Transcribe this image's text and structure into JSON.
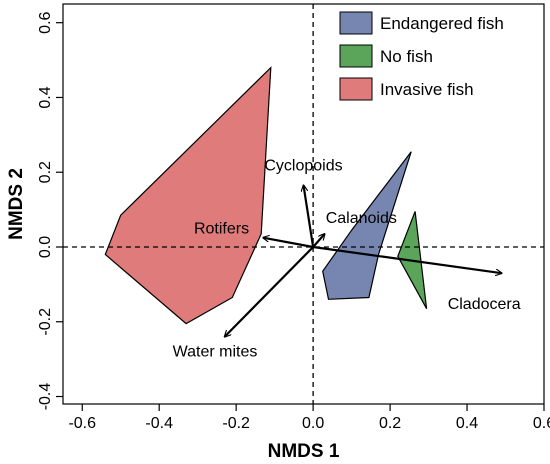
{
  "chart_data": {
    "type": "scatter",
    "xlabel": "NMDS 1",
    "ylabel": "NMDS 2",
    "xlim": [
      -0.65,
      0.6
    ],
    "ylim": [
      -0.42,
      0.65
    ],
    "x_ticks": [
      -0.6,
      -0.4,
      -0.2,
      0.0,
      0.2,
      0.4,
      0.6
    ],
    "x_tick_labels": [
      "-0.6",
      "-0.4",
      "-0.2",
      "0.0",
      "0.2",
      "0.4",
      "0.6"
    ],
    "y_ticks": [
      -0.4,
      -0.2,
      0.0,
      0.2,
      0.4,
      0.6
    ],
    "y_tick_labels": [
      "-0.4",
      "-0.2",
      "0.0",
      "0.2",
      "0.4",
      "0.6"
    ],
    "reference_lines": {
      "x": 0,
      "y": 0,
      "style": "dashed"
    },
    "legend_position": "top-right",
    "groups": [
      {
        "name": "Endangered fish",
        "color": "#7686b0",
        "hull": [
          [
            0.255,
            0.255
          ],
          [
            0.17,
            -0.02
          ],
          [
            0.145,
            -0.135
          ],
          [
            0.04,
            -0.14
          ],
          [
            0.025,
            -0.065
          ],
          [
            0.1,
            0.045
          ]
        ]
      },
      {
        "name": "No fish",
        "color": "#5aa55a",
        "hull": [
          [
            0.265,
            0.095
          ],
          [
            0.295,
            -0.165
          ],
          [
            0.22,
            -0.025
          ]
        ]
      },
      {
        "name": "Invasive fish",
        "color": "#e07b7b",
        "hull": [
          [
            -0.11,
            0.48
          ],
          [
            -0.135,
            0.035
          ],
          [
            -0.21,
            -0.135
          ],
          [
            -0.33,
            -0.205
          ],
          [
            -0.54,
            -0.02
          ],
          [
            -0.5,
            0.085
          ]
        ]
      }
    ],
    "vectors": [
      {
        "label": "Cyclopoids",
        "x": -0.025,
        "y": 0.165
      },
      {
        "label": "Calanoids",
        "x": 0.03,
        "y": 0.035
      },
      {
        "label": "Rotifers",
        "x": -0.13,
        "y": 0.025
      },
      {
        "label": "Cladocera",
        "x": 0.49,
        "y": -0.07
      },
      {
        "label": "Water mites",
        "x": -0.23,
        "y": -0.24
      }
    ]
  }
}
